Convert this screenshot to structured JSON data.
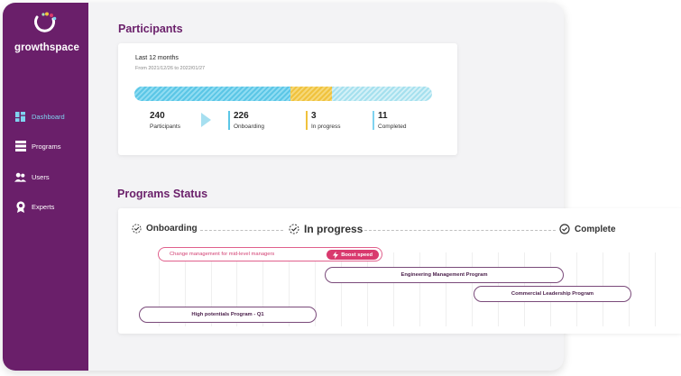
{
  "brand": {
    "name": "growthspace"
  },
  "nav": {
    "items": [
      {
        "label": "Dashboard",
        "icon": "dashboard-icon",
        "active": true
      },
      {
        "label": "Programs",
        "icon": "programs-icon",
        "active": false
      },
      {
        "label": "Users",
        "icon": "users-icon",
        "active": false
      },
      {
        "label": "Experts",
        "icon": "experts-icon",
        "active": false
      }
    ]
  },
  "participants": {
    "title": "Participants",
    "period": "Last 12 months",
    "range": "From 2021/12/26 to 2022/01/27",
    "total": {
      "value": "240",
      "label": "Participants"
    },
    "stats": [
      {
        "value": "226",
        "label": "Onboarding",
        "color": "#5bc6e6"
      },
      {
        "value": "3",
        "label": "In progress",
        "color": "#f0c23d"
      },
      {
        "value": "11",
        "label": "Completed",
        "color": "#7fd3f0"
      }
    ]
  },
  "programs_status": {
    "title": "Programs Status",
    "stages": [
      "Onboarding",
      "In progress",
      "Complete"
    ],
    "programs": [
      {
        "name": "Change management for mid-level managers",
        "badge": "Boost speed"
      },
      {
        "name": "Engineering Management Program"
      },
      {
        "name": "Commercial  Leadership Program"
      },
      {
        "name": "High potentials Program - Q1"
      }
    ]
  },
  "colors": {
    "brand": "#6a1f6a",
    "accent": "#d93a6e",
    "onboarding": "#5bc6e6",
    "in_progress": "#f0c23d"
  }
}
